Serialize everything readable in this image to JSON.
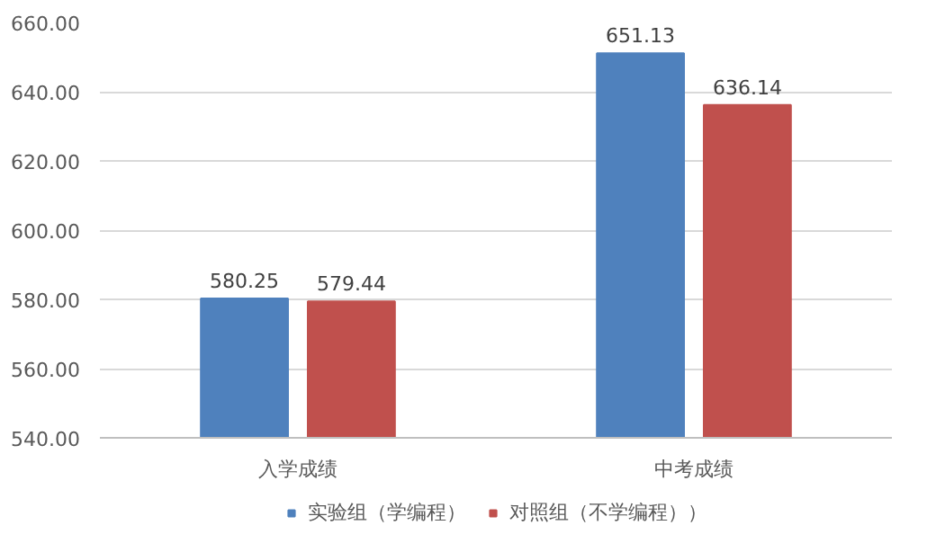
{
  "chart_data": {
    "type": "bar",
    "categories": [
      "入学成绩",
      "中考成绩"
    ],
    "series": [
      {
        "name": "实验组（学编程）",
        "color": "#4f81bd",
        "values": [
          580.25,
          651.13
        ]
      },
      {
        "name": "对照组（不学编程））",
        "color": "#c0504d",
        "values": [
          579.44,
          636.14
        ]
      }
    ],
    "ylim": [
      540,
      660
    ],
    "yticks": [
      {
        "value": 540,
        "label": "540.00"
      },
      {
        "value": 560,
        "label": "560.00"
      },
      {
        "value": 580,
        "label": "580.00"
      },
      {
        "value": 600,
        "label": "600.00"
      },
      {
        "value": 620,
        "label": "620.00"
      },
      {
        "value": 640,
        "label": "640.00"
      },
      {
        "value": 660,
        "label": "660.00"
      }
    ],
    "grid": "y",
    "legend": "bottom",
    "data_labels": true
  }
}
